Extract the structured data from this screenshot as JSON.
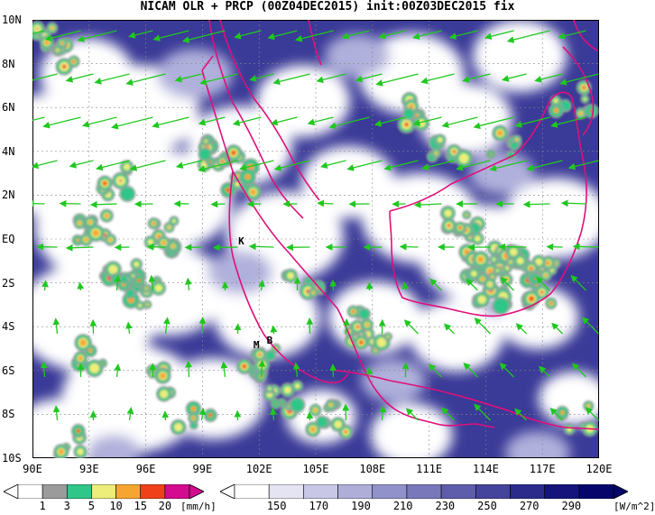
{
  "title": "NICAM OLR + PRCP (00Z04DEC2015) init:00Z03DEC2015 fix",
  "map": {
    "lon_range": [
      90,
      120
    ],
    "lat_range": [
      -10,
      10
    ],
    "lat_ticks": [
      "10N",
      "8N",
      "6N",
      "4N",
      "2N",
      "EQ",
      "2S",
      "4S",
      "6S",
      "8S",
      "10S"
    ],
    "lon_ticks": [
      "90E",
      "93E",
      "96E",
      "99E",
      "102E",
      "105E",
      "108E",
      "111E",
      "114E",
      "117E",
      "120E"
    ],
    "coast_color": "#e0107a",
    "wind_color": "#1fc81f",
    "places": [
      {
        "label": "K",
        "lon": 100.9,
        "lat": -0.1
      },
      {
        "label": "M",
        "lon": 101.7,
        "lat": -4.8
      },
      {
        "label": "B",
        "lon": 102.4,
        "lat": -4.6
      }
    ]
  },
  "precip_scale": {
    "levels": [
      "1",
      "3",
      "5",
      "10",
      "15",
      "20"
    ],
    "unit": "[mm/h]",
    "colors": [
      "#9b9b9b",
      "#2fc689",
      "#eded7a",
      "#f6a530",
      "#f0401a",
      "#d40a8f"
    ]
  },
  "olr_scale": {
    "levels": [
      "150",
      "170",
      "190",
      "210",
      "230",
      "250",
      "270",
      "290"
    ],
    "unit": "[W/m^2]",
    "colors": [
      "#ffffff",
      "#e4e4f2",
      "#c8c8e6",
      "#aeaed9",
      "#9292ca",
      "#7878bb",
      "#5d5dac",
      "#44449c",
      "#2b2b8c",
      "#14147c",
      "#05056c"
    ]
  }
}
